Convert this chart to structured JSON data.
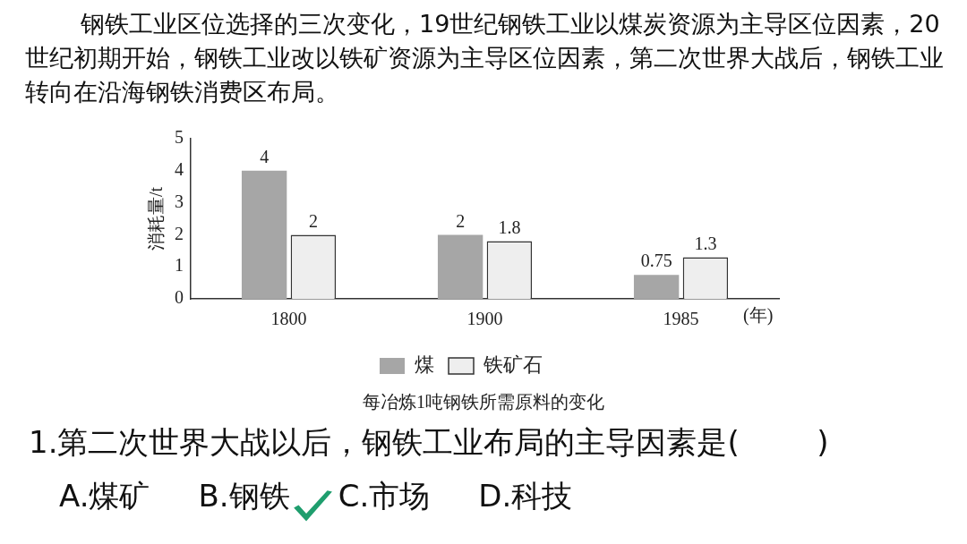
{
  "chart_data": {
    "type": "bar",
    "title": "每冶炼1吨钢铁所需原料的变化",
    "xlabel": "(年)",
    "ylabel": "消耗量/t",
    "categories": [
      "1800",
      "1900",
      "1985"
    ],
    "series": [
      {
        "name": "煤",
        "color": "#a6a6a6",
        "values": [
          4,
          2,
          0.75
        ]
      },
      {
        "name": "铁矿石",
        "color": "#eeeeee",
        "values": [
          2,
          1.8,
          1.3
        ]
      }
    ],
    "ylim": [
      0,
      5
    ],
    "yticks": [
      0,
      1,
      2,
      3,
      4,
      5
    ],
    "grid": false,
    "legend": "bottom",
    "data_labels": true,
    "annotations": [
      "钢铁工业区位选择的三次变化，19世纪钢铁工业以煤炭资源为主导区位因素，20世纪初期开始，钢铁工业改以铁矿资源为主导区位因素，第二次世界大战后，钢铁工业转向在沿海钢铁消费区布局。",
      "1.第二次世界大战以后，钢铁工业布局的主导因素是(        )",
      "A.煤矿     B.钢铁     C.市场     D.科技"
    ]
  }
}
